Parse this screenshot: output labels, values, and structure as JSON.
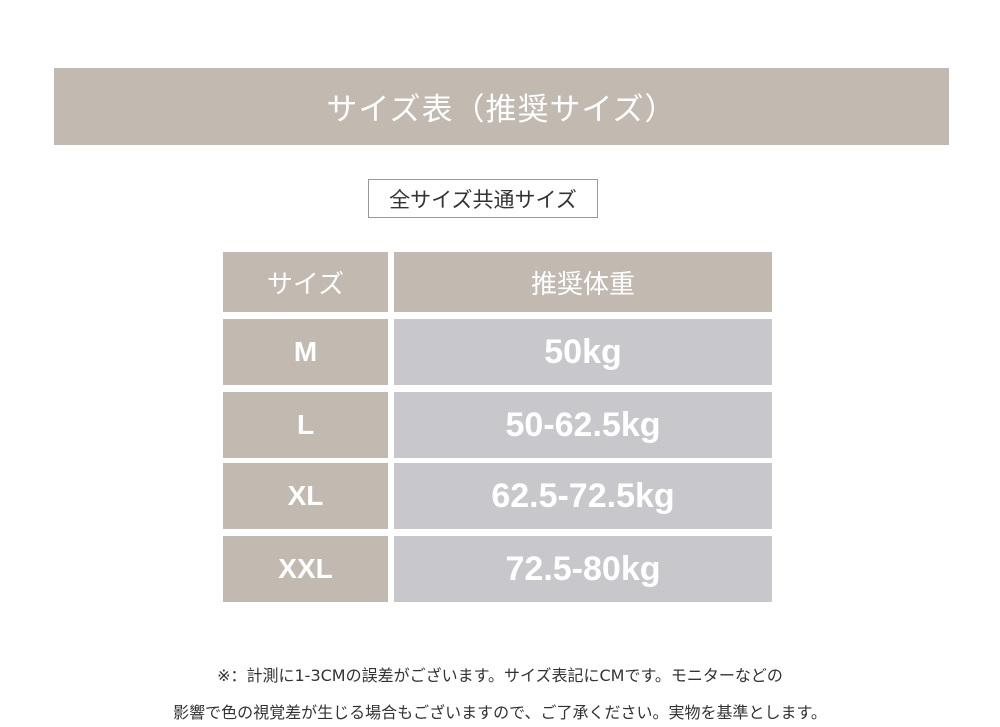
{
  "title": "サイズ表（推奨サイズ）",
  "subtitle": "全サイズ共通サイズ",
  "table": {
    "headers": [
      "サイズ",
      "推奨体重"
    ],
    "rows": [
      {
        "size": "M",
        "weight": "50kg"
      },
      {
        "size": "L",
        "weight": "50-62.5kg"
      },
      {
        "size": "XL",
        "weight": "62.5-72.5kg"
      },
      {
        "size": "XXL",
        "weight": "72.5-80kg"
      }
    ]
  },
  "notes": [
    "※：計測に1-3CMの誤差がございます。サイズ表記にCMです。モニターなどの",
    "影響で色の視覚差が生じる場合もございますので、ご了承ください。実物を基準とします。"
  ],
  "colors": {
    "header_bg": "#c2b9b0",
    "value_bg": "#c8c7cc"
  }
}
